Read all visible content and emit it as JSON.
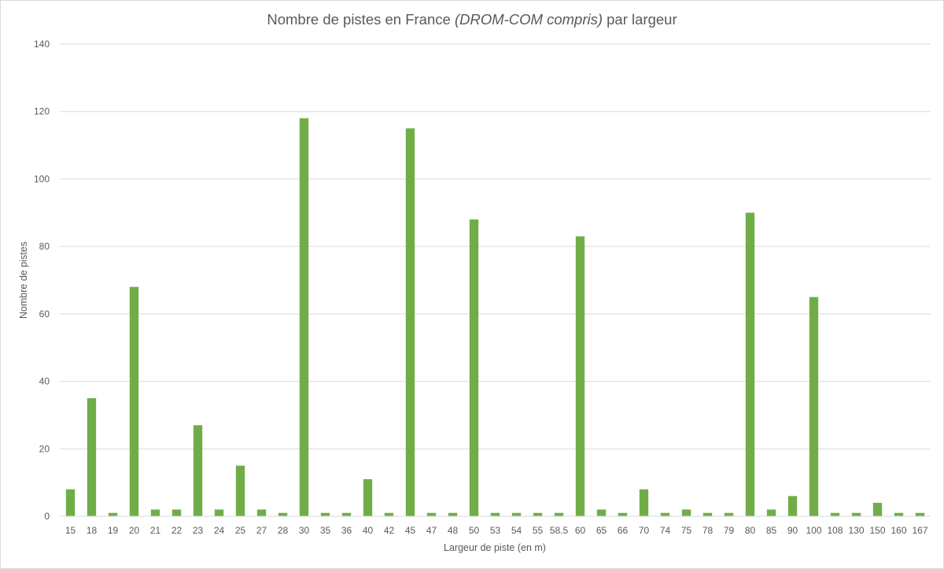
{
  "chart_data": {
    "type": "bar",
    "title": {
      "prefix": "Nombre de pistes en France ",
      "italic": "(DROM-COM compris)",
      "suffix": " par largeur"
    },
    "xlabel": "Largeur de piste (en m)",
    "ylabel": "Nombre de pistes",
    "ylim": [
      0,
      140
    ],
    "yticks": [
      0,
      20,
      40,
      60,
      80,
      100,
      120,
      140
    ],
    "grid": true,
    "legend": "none",
    "bar_color": "#70ad47",
    "categories": [
      "15",
      "18",
      "19",
      "20",
      "21",
      "22",
      "23",
      "24",
      "25",
      "27",
      "28",
      "30",
      "35",
      "36",
      "40",
      "42",
      "45",
      "47",
      "48",
      "50",
      "53",
      "54",
      "55",
      "58.5",
      "60",
      "65",
      "66",
      "70",
      "74",
      "75",
      "78",
      "79",
      "80",
      "85",
      "90",
      "100",
      "108",
      "130",
      "150",
      "160",
      "167"
    ],
    "values": [
      8,
      35,
      1,
      68,
      2,
      2,
      27,
      2,
      15,
      2,
      1,
      118,
      1,
      1,
      11,
      1,
      115,
      1,
      1,
      88,
      1,
      1,
      1,
      1,
      83,
      2,
      1,
      8,
      1,
      2,
      1,
      1,
      90,
      2,
      6,
      65,
      1,
      1,
      4,
      1,
      1
    ]
  }
}
